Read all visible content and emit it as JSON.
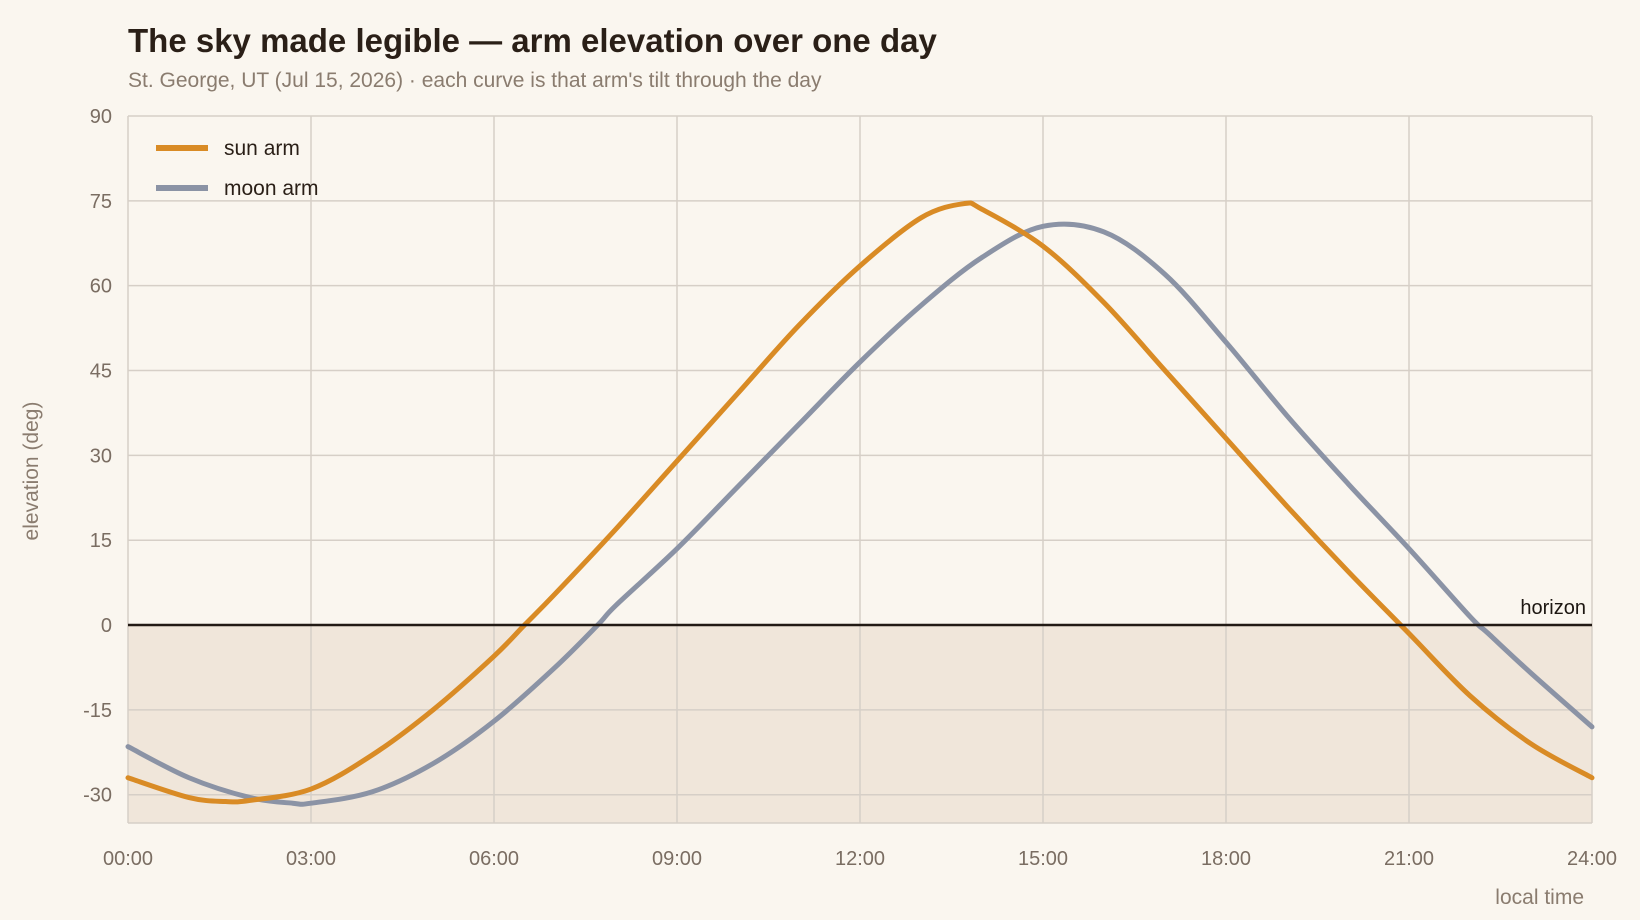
{
  "chart_data": {
    "type": "line",
    "title": "The sky made legible — arm elevation over one day",
    "subtitle": "St. George, UT (Jul 15, 2026) · each curve is that arm's tilt through the day",
    "xlabel": "local time",
    "ylabel": "elevation (deg)",
    "xlim": [
      0,
      24
    ],
    "ylim": [
      -35,
      90
    ],
    "x_ticks": [
      0,
      3,
      6,
      9,
      12,
      15,
      18,
      21,
      24
    ],
    "x_tick_labels": [
      "00:00",
      "03:00",
      "06:00",
      "09:00",
      "12:00",
      "15:00",
      "18:00",
      "21:00",
      "24:00"
    ],
    "y_ticks": [
      -30,
      -15,
      0,
      15,
      30,
      45,
      60,
      75,
      90
    ],
    "y_tick_labels": [
      "-30",
      "-15",
      "0",
      "15",
      "30",
      "45",
      "60",
      "75",
      "90"
    ],
    "grid": true,
    "legend_position": "top-left",
    "horizon": {
      "value": 0,
      "label": "horizon"
    },
    "below_horizon_fill": "#f0e6da",
    "series": [
      {
        "name": "sun arm",
        "color": "#d98b25",
        "x": [
          0,
          1,
          1.6,
          2,
          3,
          4,
          5,
          6,
          6.5,
          7,
          8,
          9,
          10,
          11,
          12,
          13,
          13.7,
          14,
          15,
          16,
          17,
          18,
          19,
          20,
          21,
          22,
          23,
          24
        ],
        "y": [
          -27,
          -30.5,
          -31.2,
          -31,
          -29,
          -23,
          -15,
          -5.5,
          0,
          5.5,
          17,
          29,
          41,
          53,
          63.5,
          72,
          74.5,
          73.5,
          67,
          57,
          45,
          33,
          21,
          9.5,
          -1.5,
          -12.5,
          -21,
          -27
        ]
      },
      {
        "name": "moon arm",
        "color": "#8b93a5",
        "x": [
          0,
          1,
          2,
          2.7,
          3,
          4,
          5,
          6,
          7,
          7.7,
          8,
          9,
          10,
          11,
          12,
          13,
          14,
          15,
          16,
          17,
          18,
          19,
          20,
          21,
          22,
          22.3,
          23,
          24
        ],
        "y": [
          -21.5,
          -27,
          -30.5,
          -31.5,
          -31.5,
          -29.5,
          -24.5,
          -17,
          -7.5,
          0,
          3.5,
          13.5,
          24.5,
          35.5,
          46.5,
          56.5,
          65,
          70.5,
          69.5,
          62,
          50,
          37,
          25,
          13.5,
          1.5,
          -1.5,
          -8.5,
          -18
        ]
      }
    ]
  }
}
